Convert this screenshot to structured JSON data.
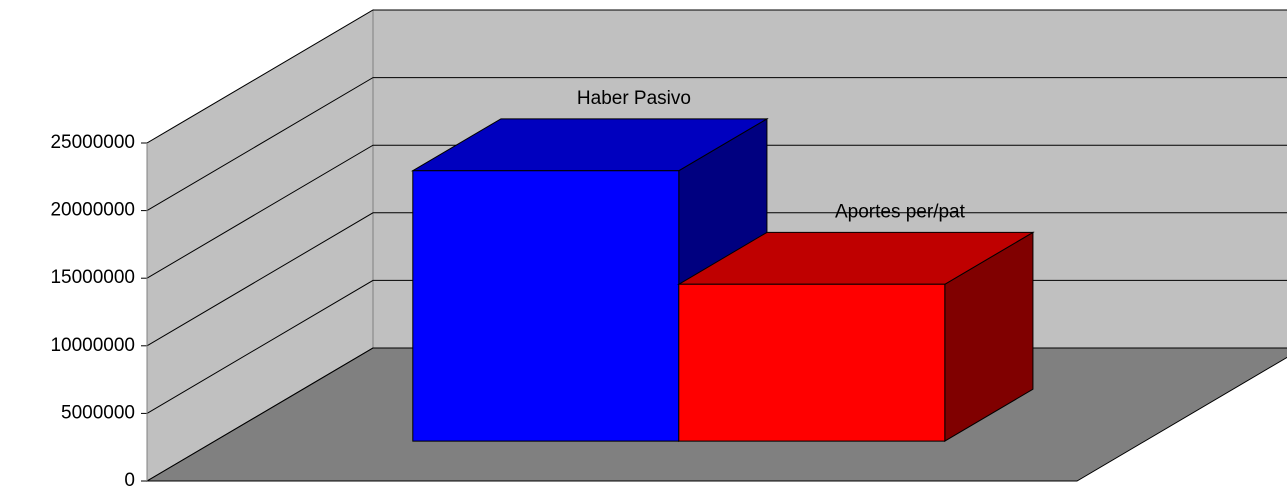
{
  "chart_data": {
    "type": "bar3d",
    "categories": [
      "Haber Pasivo",
      "Aportes per/pat"
    ],
    "values": [
      20000000,
      11600000
    ],
    "colors": [
      "#0000ff",
      "#ff0000"
    ],
    "ylim": [
      0,
      25000000
    ],
    "yticks": [
      0,
      5000000,
      10000000,
      15000000,
      20000000,
      25000000
    ],
    "grid": true
  }
}
